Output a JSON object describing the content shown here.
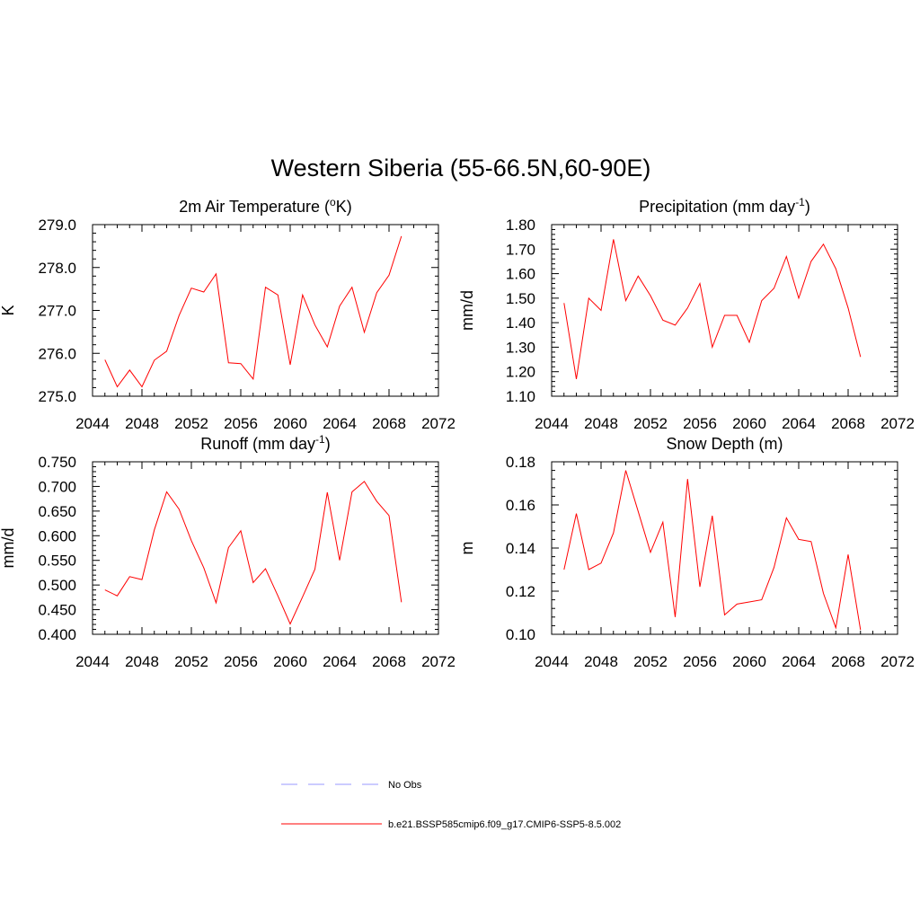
{
  "figure": {
    "title": "Western Siberia (55-66.5N,60-90E)"
  },
  "colors": {
    "model_line": "#ff0000",
    "obs_line": "#9999ff",
    "axis": "#000000"
  },
  "legend": {
    "entries": [
      {
        "label": "No Obs",
        "style": "dashed",
        "color": "#9999ff"
      },
      {
        "label": "b.e21.BSSP585cmip6.f09_g17.CMIP6-SSP5-8.5.002",
        "style": "solid",
        "color": "#ff0000"
      }
    ]
  },
  "chart_data": [
    {
      "type": "line",
      "title": "2m Air Temperature (",
      "title_sup": "o",
      "title_end": "K)",
      "ylabel": "K",
      "xlim": [
        2044,
        2072
      ],
      "ylim": [
        275.0,
        279.0
      ],
      "x_ticks": [
        2044,
        2048,
        2052,
        2056,
        2060,
        2064,
        2068,
        2072
      ],
      "y_ticks": [
        275.0,
        276.0,
        277.0,
        278.0,
        279.0
      ],
      "y_decimals": 1,
      "x": [
        2045,
        2046,
        2047,
        2048,
        2049,
        2050,
        2051,
        2052,
        2053,
        2054,
        2055,
        2056,
        2057,
        2058,
        2059,
        2060,
        2061,
        2062,
        2063,
        2064,
        2065,
        2066,
        2067,
        2068,
        2069
      ],
      "series": [
        {
          "values": [
            275.85,
            275.22,
            275.61,
            275.22,
            275.84,
            276.05,
            276.88,
            277.52,
            277.43,
            277.85,
            275.78,
            275.76,
            275.4,
            277.54,
            277.36,
            275.73,
            277.36,
            276.66,
            276.15,
            277.1,
            277.54,
            276.49,
            277.41,
            277.82,
            278.73
          ]
        }
      ]
    },
    {
      "type": "line",
      "title": "Precipitation (mm day",
      "title_sup": "-1",
      "title_end": ")",
      "ylabel": "mm/d",
      "xlim": [
        2044,
        2072
      ],
      "ylim": [
        1.1,
        1.8
      ],
      "x_ticks": [
        2044,
        2048,
        2052,
        2056,
        2060,
        2064,
        2068,
        2072
      ],
      "y_ticks": [
        1.1,
        1.2,
        1.3,
        1.4,
        1.5,
        1.6,
        1.7,
        1.8
      ],
      "y_decimals": 2,
      "x": [
        2045,
        2046,
        2047,
        2048,
        2049,
        2050,
        2051,
        2052,
        2053,
        2054,
        2055,
        2056,
        2057,
        2058,
        2059,
        2060,
        2061,
        2062,
        2063,
        2064,
        2065,
        2066,
        2067,
        2068,
        2069
      ],
      "series": [
        {
          "values": [
            1.48,
            1.17,
            1.5,
            1.45,
            1.74,
            1.49,
            1.59,
            1.51,
            1.41,
            1.39,
            1.46,
            1.56,
            1.3,
            1.43,
            1.43,
            1.32,
            1.49,
            1.54,
            1.67,
            1.5,
            1.65,
            1.72,
            1.62,
            1.46,
            1.26
          ]
        }
      ]
    },
    {
      "type": "line",
      "title": "Runoff (mm day",
      "title_sup": "-1",
      "title_end": ")",
      "ylabel": "mm/d",
      "xlim": [
        2044,
        2072
      ],
      "ylim": [
        0.4,
        0.75
      ],
      "x_ticks": [
        2044,
        2048,
        2052,
        2056,
        2060,
        2064,
        2068,
        2072
      ],
      "y_ticks": [
        0.4,
        0.45,
        0.5,
        0.55,
        0.6,
        0.65,
        0.7,
        0.75
      ],
      "y_decimals": 3,
      "x": [
        2045,
        2046,
        2047,
        2048,
        2049,
        2050,
        2051,
        2052,
        2053,
        2054,
        2055,
        2056,
        2057,
        2058,
        2059,
        2060,
        2061,
        2062,
        2063,
        2064,
        2065,
        2066,
        2067,
        2068,
        2069
      ],
      "series": [
        {
          "values": [
            0.49,
            0.478,
            0.517,
            0.511,
            0.612,
            0.689,
            0.654,
            0.59,
            0.535,
            0.464,
            0.576,
            0.61,
            0.505,
            0.533,
            0.478,
            0.421,
            0.476,
            0.532,
            0.688,
            0.55,
            0.689,
            0.71,
            0.67,
            0.641,
            0.465
          ]
        }
      ]
    },
    {
      "type": "line",
      "title": "Snow Depth (m)",
      "title_sup": "",
      "title_end": "",
      "ylabel": "m",
      "xlim": [
        2044,
        2072
      ],
      "ylim": [
        0.1,
        0.18
      ],
      "x_ticks": [
        2044,
        2048,
        2052,
        2056,
        2060,
        2064,
        2068,
        2072
      ],
      "y_ticks": [
        0.1,
        0.12,
        0.14,
        0.16,
        0.18
      ],
      "y_decimals": 2,
      "x": [
        2045,
        2046,
        2047,
        2048,
        2049,
        2050,
        2051,
        2052,
        2053,
        2054,
        2055,
        2056,
        2057,
        2058,
        2059,
        2060,
        2061,
        2062,
        2063,
        2064,
        2065,
        2066,
        2067,
        2068,
        2069
      ],
      "series": [
        {
          "values": [
            0.13,
            0.156,
            0.13,
            0.133,
            0.147,
            0.176,
            0.157,
            0.138,
            0.152,
            0.108,
            0.172,
            0.122,
            0.155,
            0.109,
            0.114,
            0.115,
            0.116,
            0.131,
            0.154,
            0.144,
            0.143,
            0.119,
            0.103,
            0.137,
            0.102
          ]
        }
      ]
    }
  ]
}
